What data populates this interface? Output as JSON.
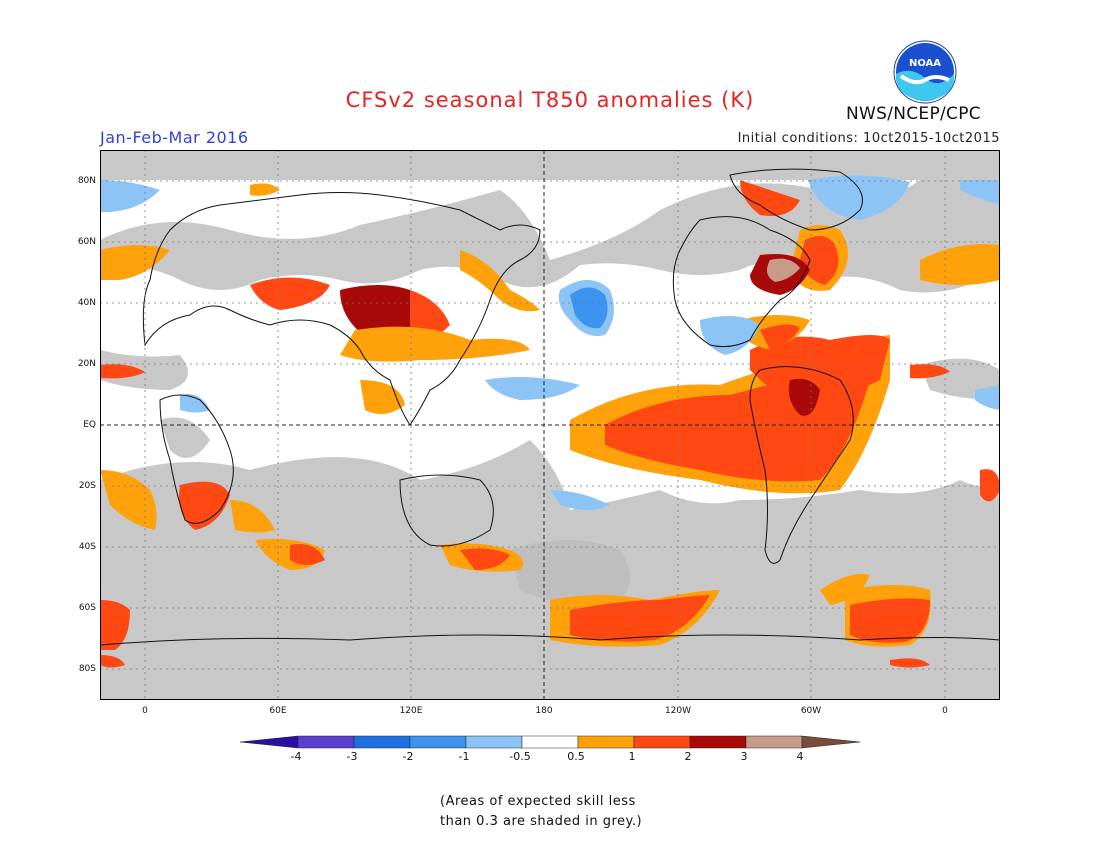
{
  "title": "CFSv2 seasonal T850 anomalies (K)",
  "period": "Jan-Feb-Mar 2016",
  "initial_conditions": "Initial conditions: 10ct2015-10ct2015",
  "agency": "NWS/NCEP/CPC",
  "logo_text": "NOAA",
  "latitude_labels": [
    "80N",
    "60N",
    "40N",
    "20N",
    "EQ",
    "20S",
    "40S",
    "60S",
    "80S"
  ],
  "longitude_labels": [
    "0",
    "60E",
    "120E",
    "180",
    "120W",
    "60W",
    "0"
  ],
  "colorbar": {
    "labels": [
      "-4",
      "-3",
      "-2",
      "-1",
      "-0.5",
      "0.5",
      "1",
      "2",
      "3",
      "4"
    ],
    "colors": [
      "#2a0fa5",
      "#5a3ed0",
      "#1f6fe0",
      "#3c93f0",
      "#8cc4f5",
      "#ffffff",
      "#ffa10a",
      "#ff4812",
      "#a80a0a",
      "#c89a8a",
      "#7a4a3a"
    ]
  },
  "footnote": [
    "(Areas of expected skill less",
    "than 0.3 are shaded in grey.)"
  ],
  "colors": {
    "title": "#e8231f",
    "period": "#2f43d8",
    "skill_grey": "#c8c8c8"
  }
}
